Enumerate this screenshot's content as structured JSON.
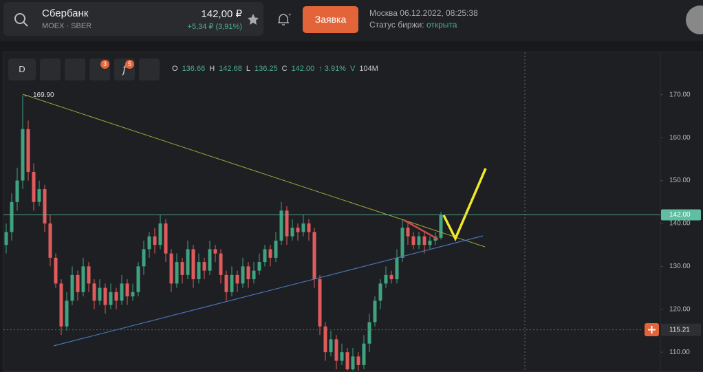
{
  "header": {
    "name": "Сбербанк",
    "ticker": "MOEX · SBER",
    "price": "142,00 ₽",
    "change": "+5,34 ₽ (3,91%)",
    "order_button": "Заявка",
    "datetime": "Москва 06.12.2022, 08:25:38",
    "status_label": "Статус биржи:",
    "status_value": "открыта"
  },
  "toolbar": {
    "interval": "D",
    "drawings_badge": "3",
    "indicators_badge": "5",
    "ohlc": [
      "O",
      "136.66",
      "H",
      "142.68",
      "L",
      "136.25",
      "C",
      "142.00",
      "↑ 3.91%",
      "V",
      "104M"
    ]
  },
  "chart_data": {
    "type": "candlestick",
    "up_color": "#3fa37f",
    "down_color": "#e05c5c",
    "open": [
      135,
      138,
      145,
      150,
      162,
      152,
      145,
      148,
      140,
      132,
      126,
      116,
      122,
      128,
      124,
      130,
      126,
      122,
      125,
      121,
      124,
      122,
      126,
      123,
      124,
      130,
      134,
      137,
      135,
      140,
      133,
      126,
      131,
      128,
      134,
      127,
      131,
      129,
      134,
      133,
      128,
      124,
      128,
      126,
      130,
      127,
      129,
      131,
      134,
      132,
      136,
      143,
      137,
      139,
      138,
      140,
      138,
      127,
      116,
      110,
      113,
      108,
      110,
      106,
      109,
      107,
      112,
      117,
      122,
      126,
      128,
      127,
      132,
      139,
      137,
      135,
      137,
      135,
      136,
      136.66
    ],
    "high": [
      140,
      147,
      153,
      169.9,
      164,
      154,
      150,
      149,
      142,
      133,
      127,
      124,
      130,
      129,
      132,
      131,
      127,
      127,
      126,
      126,
      125,
      128,
      127,
      126,
      131,
      136,
      138,
      139,
      142,
      141,
      134,
      133,
      132,
      136,
      135,
      133,
      132,
      136,
      135,
      134,
      129,
      130,
      129,
      132,
      131,
      131,
      133,
      135,
      135,
      138,
      145,
      144,
      141,
      140,
      142,
      141,
      139,
      128,
      117,
      115,
      114,
      112,
      111,
      111,
      110,
      114,
      119,
      123,
      127,
      130,
      129,
      134,
      141,
      140,
      138,
      138,
      138,
      137,
      138,
      142.68
    ],
    "low": [
      133,
      136,
      143,
      148,
      150,
      143,
      144,
      138,
      130,
      125,
      114,
      115,
      121,
      122,
      123,
      124,
      120,
      121,
      119,
      120,
      120,
      121,
      121,
      122,
      123,
      128,
      132,
      133,
      134,
      131,
      124,
      125,
      126,
      127,
      125,
      126,
      127,
      128,
      131,
      126,
      122,
      123,
      124,
      125,
      125,
      126,
      128,
      130,
      130,
      131,
      135,
      135,
      136,
      136,
      137,
      136,
      125,
      114,
      108,
      109,
      106,
      107,
      105,
      105,
      105,
      106,
      110,
      116,
      120,
      125,
      126,
      126,
      131,
      135,
      134,
      134,
      133,
      134,
      135,
      136.25
    ],
    "close": [
      138,
      145,
      150,
      162,
      152,
      145,
      148,
      140,
      132,
      126,
      116,
      122,
      128,
      124,
      130,
      126,
      122,
      125,
      121,
      124,
      122,
      126,
      123,
      124,
      130,
      134,
      137,
      135,
      140,
      133,
      126,
      131,
      128,
      134,
      127,
      131,
      129,
      134,
      133,
      128,
      124,
      128,
      126,
      130,
      127,
      129,
      131,
      134,
      132,
      136,
      143,
      137,
      139,
      138,
      140,
      138,
      127,
      116,
      110,
      113,
      108,
      110,
      106,
      109,
      107,
      112,
      117,
      122,
      126,
      128,
      127,
      132,
      139,
      137,
      135,
      137,
      135,
      136,
      137,
      142
    ],
    "ylim": [
      105.7,
      179.9
    ],
    "yticks": [
      {
        "value": 170,
        "label": "170.00"
      },
      {
        "value": 160,
        "label": "160.00"
      },
      {
        "value": 150,
        "label": "150.00"
      },
      {
        "value": 140,
        "label": "140.00"
      },
      {
        "value": 130,
        "label": "130.00"
      },
      {
        "value": 120,
        "label": "120.00"
      },
      {
        "value": 110,
        "label": "110.00"
      }
    ],
    "max_marker": {
      "value": 169.9,
      "label": "169.90"
    },
    "last_price": {
      "value": 142,
      "label": "142.00",
      "color": "#5fbfa0"
    },
    "crosshair": {
      "value": 115.21,
      "label": "115.21"
    }
  }
}
